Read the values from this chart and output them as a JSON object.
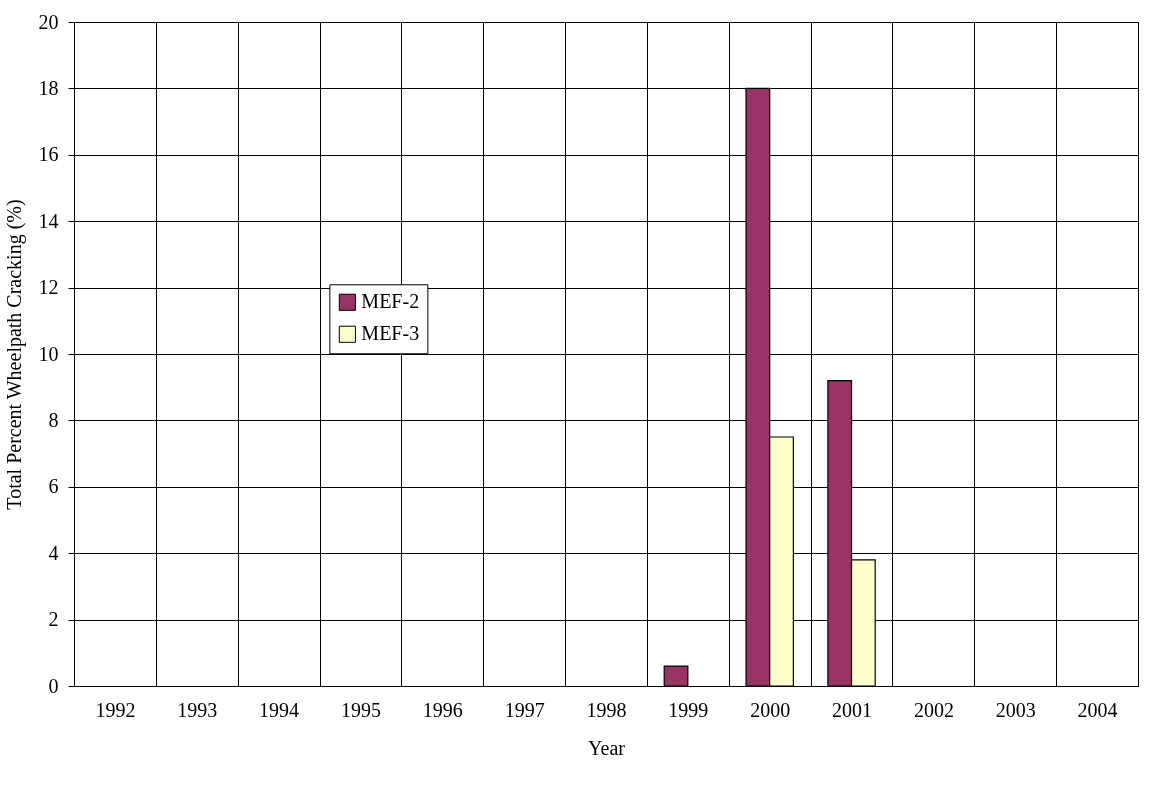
{
  "chart_data": {
    "type": "bar",
    "xlabel": "Year",
    "ylabel": "Total Percent Wheelpath Cracking (%)",
    "categories": [
      "1992",
      "1993",
      "1994",
      "1995",
      "1996",
      "1997",
      "1998",
      "1999",
      "2000",
      "2001",
      "2002",
      "2003",
      "2004"
    ],
    "series": [
      {
        "name": "MEF-2",
        "color": "#993366",
        "values": [
          null,
          null,
          null,
          null,
          null,
          null,
          null,
          0.6,
          18,
          9.2,
          null,
          null,
          null
        ]
      },
      {
        "name": "MEF-3",
        "color": "#ffffcc",
        "values": [
          null,
          null,
          null,
          null,
          null,
          null,
          null,
          null,
          7.5,
          3.8,
          null,
          null,
          null
        ]
      }
    ],
    "ylim": [
      0,
      20
    ],
    "yticks": [
      0,
      2,
      4,
      6,
      8,
      10,
      12,
      14,
      16,
      18,
      20
    ],
    "grid": true,
    "legend": "left"
  }
}
